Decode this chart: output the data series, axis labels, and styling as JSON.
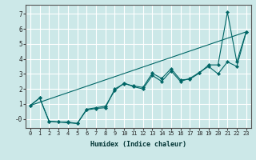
{
  "xlabel": "Humidex (Indice chaleur)",
  "bg_color": "#cce8e8",
  "grid_color": "#ffffff",
  "line_color": "#006666",
  "xlim": [
    -0.5,
    23.5
  ],
  "ylim": [
    -0.6,
    7.6
  ],
  "xticks": [
    0,
    1,
    2,
    3,
    4,
    5,
    6,
    7,
    8,
    9,
    10,
    11,
    12,
    13,
    14,
    15,
    16,
    17,
    18,
    19,
    20,
    21,
    22,
    23
  ],
  "yticks": [
    0,
    1,
    2,
    3,
    4,
    5,
    6,
    7
  ],
  "line1": [
    [
      0,
      0.9
    ],
    [
      1,
      1.4
    ],
    [
      2,
      -0.15
    ],
    [
      3,
      -0.2
    ],
    [
      4,
      -0.2
    ],
    [
      5,
      -0.3
    ],
    [
      6,
      0.6
    ],
    [
      7,
      0.7
    ],
    [
      8,
      0.75
    ],
    [
      9,
      2.0
    ],
    [
      10,
      2.35
    ],
    [
      11,
      2.2
    ],
    [
      12,
      2.1
    ],
    [
      13,
      3.05
    ],
    [
      14,
      2.7
    ],
    [
      15,
      3.35
    ],
    [
      16,
      2.6
    ],
    [
      17,
      2.65
    ],
    [
      18,
      3.05
    ],
    [
      19,
      3.6
    ],
    [
      20,
      3.6
    ],
    [
      21,
      7.1
    ],
    [
      22,
      3.8
    ],
    [
      23,
      5.8
    ]
  ],
  "line2": [
    [
      0,
      0.9
    ],
    [
      1,
      1.4
    ],
    [
      2,
      -0.15
    ],
    [
      3,
      -0.2
    ],
    [
      4,
      -0.25
    ],
    [
      5,
      -0.3
    ],
    [
      6,
      0.65
    ],
    [
      7,
      0.75
    ],
    [
      8,
      0.85
    ],
    [
      9,
      1.9
    ],
    [
      10,
      2.4
    ],
    [
      11,
      2.15
    ],
    [
      12,
      2.0
    ],
    [
      13,
      2.9
    ],
    [
      14,
      2.5
    ],
    [
      15,
      3.2
    ],
    [
      16,
      2.5
    ],
    [
      17,
      2.7
    ],
    [
      18,
      3.1
    ],
    [
      19,
      3.5
    ],
    [
      20,
      3.0
    ],
    [
      21,
      3.8
    ],
    [
      22,
      3.5
    ],
    [
      23,
      5.8
    ]
  ],
  "line3": [
    [
      0,
      0.9
    ],
    [
      23,
      5.8
    ]
  ]
}
